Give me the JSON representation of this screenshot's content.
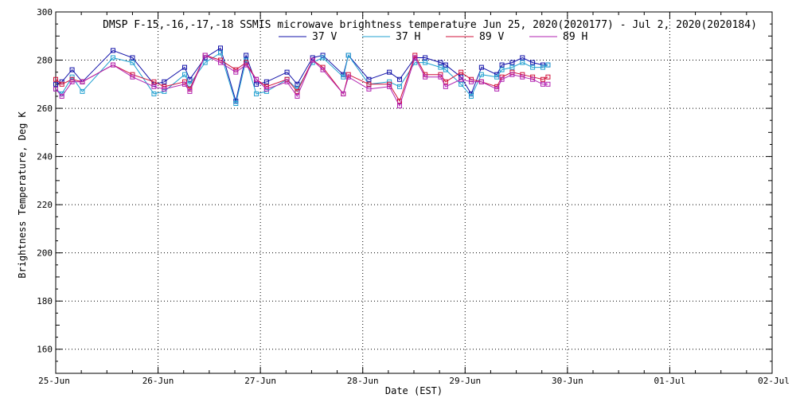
{
  "chart_data": {
    "type": "line",
    "title": "DMSP F-15,-16,-17,-18 SSMIS microwave brightness temperature Jun 25, 2020(2020177) - Jul  2, 2020(2020184)",
    "xlabel": "Date (EST)",
    "ylabel": "Brightness Temperature, Deg K",
    "ylim": [
      150,
      300
    ],
    "xlim": [
      0,
      7
    ],
    "y_ticks": [
      "160",
      "180",
      "200",
      "220",
      "240",
      "260",
      "280",
      "300"
    ],
    "x_ticks": [
      "25-Jun",
      "26-Jun",
      "27-Jun",
      "28-Jun",
      "29-Jun",
      "30-Jun",
      "01-Jul",
      "02-Jul"
    ],
    "x_unit": "days since 25-Jun",
    "grid": true,
    "legend_position": "top-center",
    "x": [
      0.0,
      0.06,
      0.16,
      0.26,
      0.56,
      0.75,
      0.96,
      1.06,
      1.26,
      1.31,
      1.46,
      1.61,
      1.76,
      1.86,
      1.96,
      2.06,
      2.26,
      2.36,
      2.51,
      2.61,
      2.81,
      2.86,
      3.06,
      3.26,
      3.36,
      3.51,
      3.61,
      3.76,
      3.81,
      3.96,
      4.06,
      4.16,
      4.31,
      4.36,
      4.46,
      4.56,
      4.66,
      4.76,
      4.81
    ],
    "series": [
      {
        "name": "37 V",
        "color": "#1010a8",
        "values": [
          270,
          271,
          276,
          271,
          284,
          281,
          270,
          271,
          277,
          272,
          281,
          285,
          263,
          282,
          270,
          271,
          275,
          270,
          281,
          282,
          274,
          282,
          272,
          275,
          272,
          281,
          281,
          279,
          278,
          273,
          266,
          277,
          274,
          278,
          279,
          281,
          279,
          278,
          278
        ]
      },
      {
        "name": "37 H",
        "color": "#20a0d0",
        "values": [
          268,
          266,
          273,
          267,
          281,
          279,
          266,
          267,
          274,
          270,
          279,
          283,
          262,
          280,
          266,
          267,
          272,
          268,
          279,
          281,
          273,
          282,
          270,
          271,
          269,
          279,
          279,
          277,
          276,
          270,
          265,
          274,
          273,
          276,
          277,
          279,
          277,
          277,
          278
        ]
      },
      {
        "name": "89 V",
        "color": "#d0103a",
        "values": [
          272,
          270,
          272,
          271,
          278,
          274,
          271,
          269,
          271,
          268,
          282,
          280,
          276,
          279,
          272,
          269,
          272,
          267,
          280,
          277,
          266,
          274,
          270,
          270,
          263,
          282,
          274,
          274,
          271,
          275,
          272,
          271,
          269,
          273,
          275,
          274,
          273,
          272,
          273
        ]
      },
      {
        "name": "89 H",
        "color": "#b020b0",
        "values": [
          268,
          265,
          271,
          271,
          278,
          273,
          269,
          268,
          270,
          267,
          282,
          279,
          275,
          278,
          272,
          268,
          271,
          265,
          280,
          276,
          266,
          273,
          268,
          269,
          261,
          281,
          273,
          273,
          269,
          272,
          271,
          271,
          268,
          272,
          274,
          273,
          272,
          270,
          270
        ]
      }
    ]
  }
}
